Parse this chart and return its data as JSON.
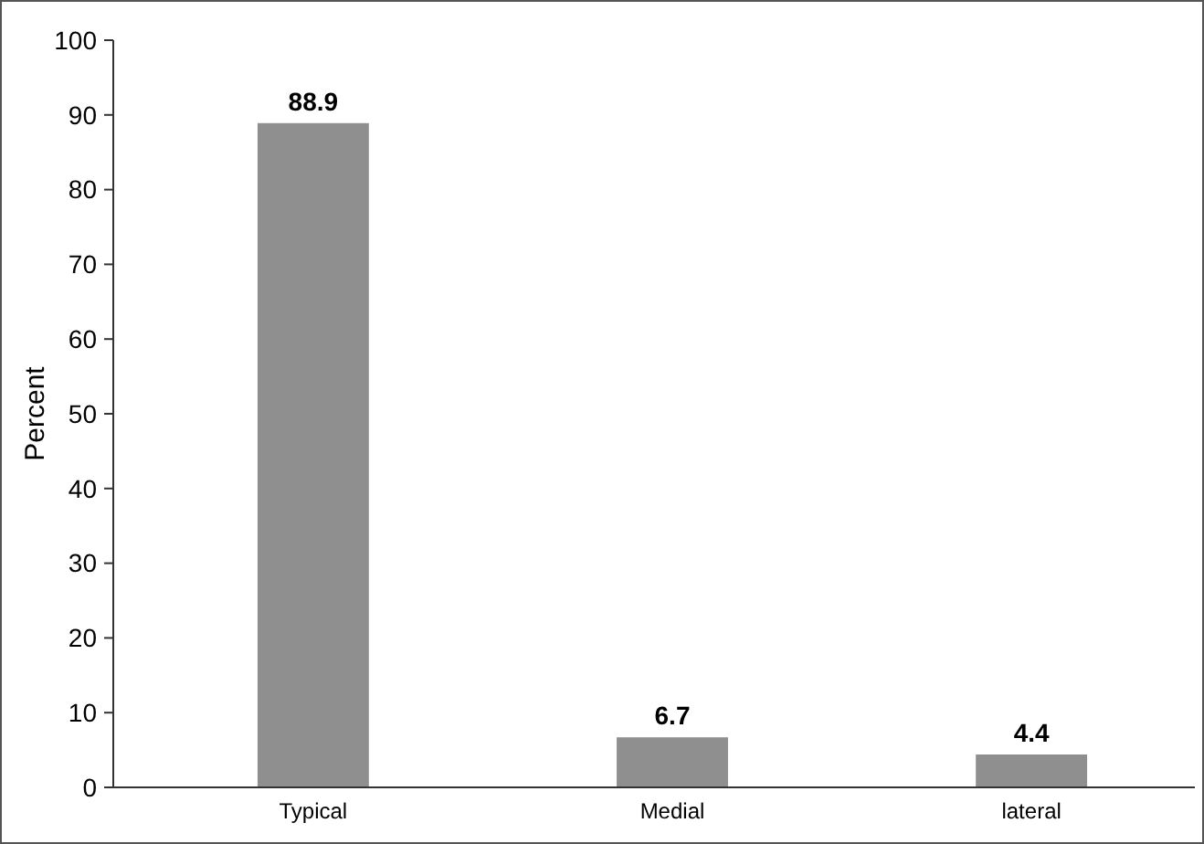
{
  "chart_data": {
    "type": "bar",
    "ylabel": "Percent",
    "categories": [
      "Typical",
      "Medial",
      "lateral"
    ],
    "values": [
      88.9,
      6.7,
      4.4
    ],
    "color": "#8f8f8f",
    "ylim": [
      0,
      100
    ],
    "yticks": [
      0,
      10,
      20,
      30,
      40,
      50,
      60,
      70,
      80,
      90,
      100
    ],
    "data_labels": true
  }
}
